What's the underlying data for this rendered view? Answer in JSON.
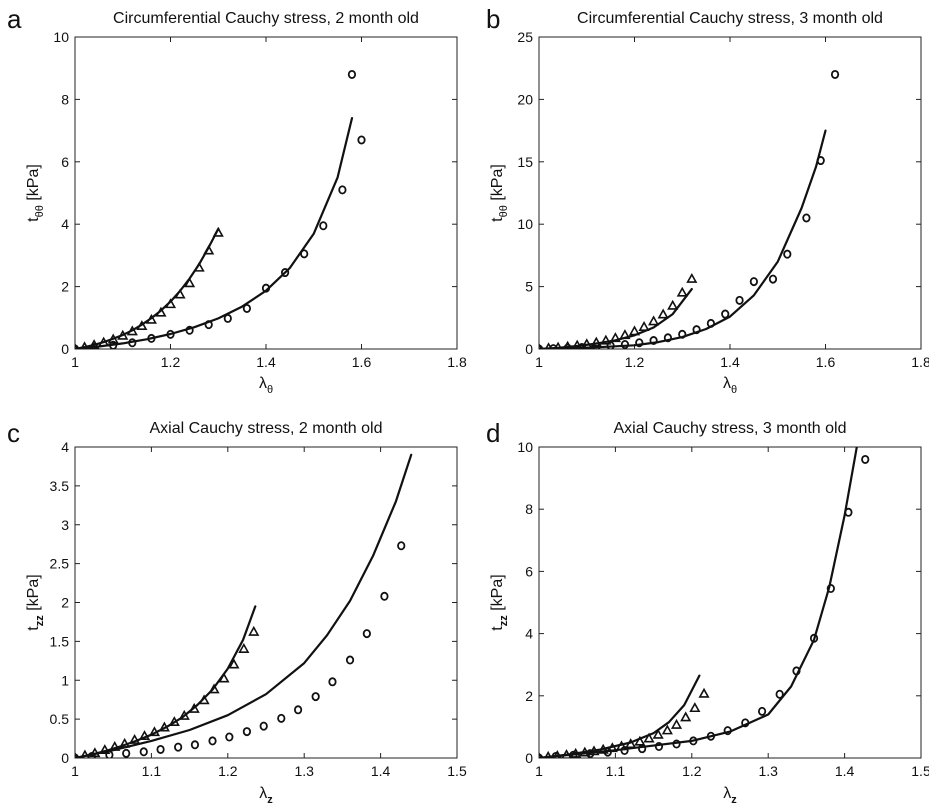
{
  "chart_data": [
    {
      "panel": "a",
      "type": "scatter",
      "title": "Circumferential Cauchy stress, 2 month old",
      "xlabel": {
        "main": "λ",
        "sub": "θ"
      },
      "ylabel": {
        "main": "t",
        "sub": "θθ",
        "unit": " [kPa]"
      },
      "xlim": [
        1,
        1.8
      ],
      "ylim": [
        0,
        10
      ],
      "xticks": [
        1,
        1.2,
        1.4,
        1.6,
        1.8
      ],
      "yticks": [
        0,
        2,
        4,
        6,
        8,
        10
      ],
      "series": [
        {
          "marker": "triangle",
          "x": [
            1.0,
            1.02,
            1.04,
            1.06,
            1.08,
            1.1,
            1.12,
            1.14,
            1.16,
            1.18,
            1.2,
            1.22,
            1.24,
            1.26,
            1.28,
            1.3
          ],
          "y": [
            0.0,
            0.05,
            0.12,
            0.2,
            0.3,
            0.42,
            0.56,
            0.73,
            0.93,
            1.16,
            1.43,
            1.74,
            2.1,
            2.6,
            3.15,
            3.72
          ]
        },
        {
          "marker": "circle",
          "x": [
            1.0,
            1.04,
            1.08,
            1.12,
            1.16,
            1.2,
            1.24,
            1.28,
            1.32,
            1.36,
            1.4,
            1.44,
            1.48,
            1.52,
            1.56,
            1.6
          ],
          "y": [
            0.0,
            0.05,
            0.12,
            0.2,
            0.34,
            0.47,
            0.6,
            0.78,
            0.98,
            1.3,
            1.95,
            2.45,
            3.05,
            3.95,
            5.1,
            6.7
          ]
        },
        {
          "marker": "circle",
          "x": [
            1.58
          ],
          "y": [
            8.8
          ]
        },
        {
          "marker": "line",
          "x": [
            1.0,
            1.02,
            1.04,
            1.06,
            1.08,
            1.1,
            1.12,
            1.14,
            1.16,
            1.18,
            1.2,
            1.22,
            1.24,
            1.26,
            1.28,
            1.3
          ],
          "y": [
            0.0,
            0.06,
            0.13,
            0.22,
            0.33,
            0.45,
            0.6,
            0.78,
            0.99,
            1.23,
            1.52,
            1.86,
            2.26,
            2.72,
            3.26,
            3.85
          ]
        },
        {
          "marker": "line",
          "x": [
            1.0,
            1.05,
            1.1,
            1.15,
            1.2,
            1.25,
            1.3,
            1.35,
            1.4,
            1.45,
            1.5,
            1.55,
            1.58
          ],
          "y": [
            0.0,
            0.08,
            0.18,
            0.31,
            0.48,
            0.7,
            0.98,
            1.36,
            1.87,
            2.6,
            3.7,
            5.5,
            7.4
          ]
        }
      ]
    },
    {
      "panel": "b",
      "type": "scatter",
      "title": "Circumferential Cauchy stress, 3 month old",
      "xlabel": {
        "main": "λ",
        "sub": "θ"
      },
      "ylabel": {
        "main": "t",
        "sub": "θθ",
        "unit": " [kPa]"
      },
      "xlim": [
        1,
        1.8
      ],
      "ylim": [
        0,
        25
      ],
      "xticks": [
        1,
        1.2,
        1.4,
        1.6,
        1.8
      ],
      "yticks": [
        0,
        5,
        10,
        15,
        20,
        25
      ],
      "series": [
        {
          "marker": "triangle",
          "x": [
            1.0,
            1.02,
            1.04,
            1.06,
            1.08,
            1.1,
            1.12,
            1.14,
            1.16,
            1.18,
            1.2,
            1.22,
            1.24,
            1.26,
            1.28,
            1.3,
            1.32
          ],
          "y": [
            0.0,
            0.05,
            0.1,
            0.17,
            0.26,
            0.37,
            0.5,
            0.66,
            0.86,
            1.1,
            1.4,
            1.75,
            2.2,
            2.75,
            3.45,
            4.5,
            5.6
          ]
        },
        {
          "marker": "circle",
          "x": [
            1.0,
            1.03,
            1.06,
            1.09,
            1.12,
            1.15,
            1.18,
            1.21,
            1.24,
            1.27,
            1.3,
            1.33,
            1.36,
            1.39,
            1.42,
            1.45,
            1.49,
            1.52,
            1.56,
            1.59
          ],
          "y": [
            0.0,
            0.03,
            0.07,
            0.12,
            0.18,
            0.26,
            0.36,
            0.5,
            0.68,
            0.9,
            1.18,
            1.55,
            2.05,
            2.8,
            3.9,
            5.4,
            5.6,
            7.6,
            10.5,
            15.1
          ]
        },
        {
          "marker": "circle",
          "x": [
            1.62
          ],
          "y": [
            22.0
          ]
        },
        {
          "marker": "line",
          "x": [
            1.0,
            1.04,
            1.08,
            1.12,
            1.16,
            1.2,
            1.24,
            1.28,
            1.32
          ],
          "y": [
            0.0,
            0.1,
            0.24,
            0.43,
            0.7,
            1.1,
            1.72,
            2.8,
            4.8
          ]
        },
        {
          "marker": "line",
          "x": [
            1.0,
            1.1,
            1.2,
            1.25,
            1.3,
            1.35,
            1.4,
            1.45,
            1.5,
            1.55,
            1.58,
            1.6
          ],
          "y": [
            0.0,
            0.1,
            0.3,
            0.55,
            0.95,
            1.6,
            2.6,
            4.3,
            7.0,
            11.3,
            14.6,
            17.5
          ]
        }
      ]
    },
    {
      "panel": "c",
      "type": "scatter",
      "title": "Axial Cauchy stress, 2 month old",
      "xlabel": {
        "main": "λ",
        "sub": "z"
      },
      "ylabel": {
        "main": "t",
        "sub": "zz",
        "unit": " [kPa]"
      },
      "xlim": [
        1,
        1.5
      ],
      "ylim": [
        0,
        4
      ],
      "xticks": [
        1,
        1.1,
        1.2,
        1.3,
        1.4,
        1.5
      ],
      "yticks": [
        0,
        0.5,
        1,
        1.5,
        2,
        2.5,
        3,
        3.5,
        4
      ],
      "series": [
        {
          "marker": "triangle",
          "x": [
            1.0,
            1.013,
            1.026,
            1.039,
            1.052,
            1.065,
            1.078,
            1.091,
            1.104,
            1.117,
            1.13,
            1.143,
            1.156,
            1.169,
            1.182,
            1.195,
            1.208,
            1.221,
            1.234
          ],
          "y": [
            0.0,
            0.03,
            0.06,
            0.1,
            0.14,
            0.18,
            0.23,
            0.28,
            0.33,
            0.39,
            0.46,
            0.54,
            0.63,
            0.74,
            0.88,
            1.02,
            1.2,
            1.4,
            1.62
          ]
        },
        {
          "marker": "circle",
          "x": [
            1.0,
            1.022,
            1.045,
            1.067,
            1.09,
            1.112,
            1.135,
            1.157,
            1.18,
            1.202,
            1.225,
            1.247,
            1.27,
            1.292,
            1.315,
            1.337,
            1.36,
            1.382,
            1.405,
            1.427
          ],
          "y": [
            0.0,
            0.02,
            0.04,
            0.06,
            0.08,
            0.11,
            0.14,
            0.17,
            0.22,
            0.27,
            0.34,
            0.41,
            0.51,
            0.62,
            0.79,
            0.98,
            1.26,
            1.6,
            2.08,
            2.73
          ]
        },
        {
          "marker": "line",
          "x": [
            1.0,
            1.02,
            1.04,
            1.06,
            1.08,
            1.1,
            1.12,
            1.14,
            1.16,
            1.18,
            1.2,
            1.22,
            1.236
          ],
          "y": [
            0.0,
            0.04,
            0.09,
            0.15,
            0.22,
            0.3,
            0.4,
            0.52,
            0.68,
            0.88,
            1.15,
            1.52,
            1.95
          ]
        },
        {
          "marker": "line",
          "x": [
            1.0,
            1.05,
            1.1,
            1.15,
            1.2,
            1.25,
            1.3,
            1.33,
            1.36,
            1.39,
            1.42,
            1.44
          ],
          "y": [
            0.0,
            0.1,
            0.22,
            0.36,
            0.55,
            0.82,
            1.22,
            1.58,
            2.02,
            2.6,
            3.3,
            3.9
          ]
        }
      ]
    },
    {
      "panel": "d",
      "type": "scatter",
      "title": "Axial Cauchy stress, 3 month old",
      "xlabel": {
        "main": "λ",
        "sub": "z"
      },
      "ylabel": {
        "main": "t",
        "sub": "zz",
        "unit": " [kPa]"
      },
      "xlim": [
        1,
        1.5
      ],
      "ylim": [
        0,
        10
      ],
      "xticks": [
        1,
        1.1,
        1.2,
        1.3,
        1.4,
        1.5
      ],
      "yticks": [
        0,
        2,
        4,
        6,
        8,
        10
      ],
      "series": [
        {
          "marker": "triangle",
          "x": [
            1.0,
            1.012,
            1.024,
            1.036,
            1.048,
            1.06,
            1.072,
            1.084,
            1.096,
            1.108,
            1.12,
            1.132,
            1.144,
            1.156,
            1.168,
            1.18,
            1.192,
            1.204,
            1.216
          ],
          "y": [
            0.0,
            0.03,
            0.06,
            0.09,
            0.13,
            0.17,
            0.21,
            0.26,
            0.31,
            0.37,
            0.44,
            0.52,
            0.62,
            0.74,
            0.88,
            1.06,
            1.3,
            1.6,
            2.06
          ]
        },
        {
          "marker": "circle",
          "x": [
            1.0,
            1.022,
            1.045,
            1.067,
            1.09,
            1.112,
            1.135,
            1.157,
            1.18,
            1.202,
            1.225,
            1.247,
            1.27,
            1.292,
            1.315,
            1.337,
            1.36,
            1.382,
            1.405,
            1.427
          ],
          "y": [
            0.0,
            0.05,
            0.09,
            0.14,
            0.19,
            0.24,
            0.3,
            0.37,
            0.45,
            0.55,
            0.7,
            0.88,
            1.13,
            1.5,
            2.05,
            2.8,
            3.85,
            5.45,
            7.9,
            9.6
          ]
        },
        {
          "marker": "line",
          "x": [
            1.0,
            1.04,
            1.08,
            1.12,
            1.15,
            1.17,
            1.19,
            1.21
          ],
          "y": [
            0.0,
            0.12,
            0.27,
            0.5,
            0.8,
            1.15,
            1.7,
            2.65
          ]
        },
        {
          "marker": "line",
          "x": [
            1.0,
            1.1,
            1.2,
            1.25,
            1.3,
            1.33,
            1.36,
            1.38,
            1.4,
            1.416
          ],
          "y": [
            0.0,
            0.25,
            0.55,
            0.85,
            1.4,
            2.3,
            3.8,
            5.5,
            7.8,
            10.0
          ]
        }
      ]
    }
  ]
}
